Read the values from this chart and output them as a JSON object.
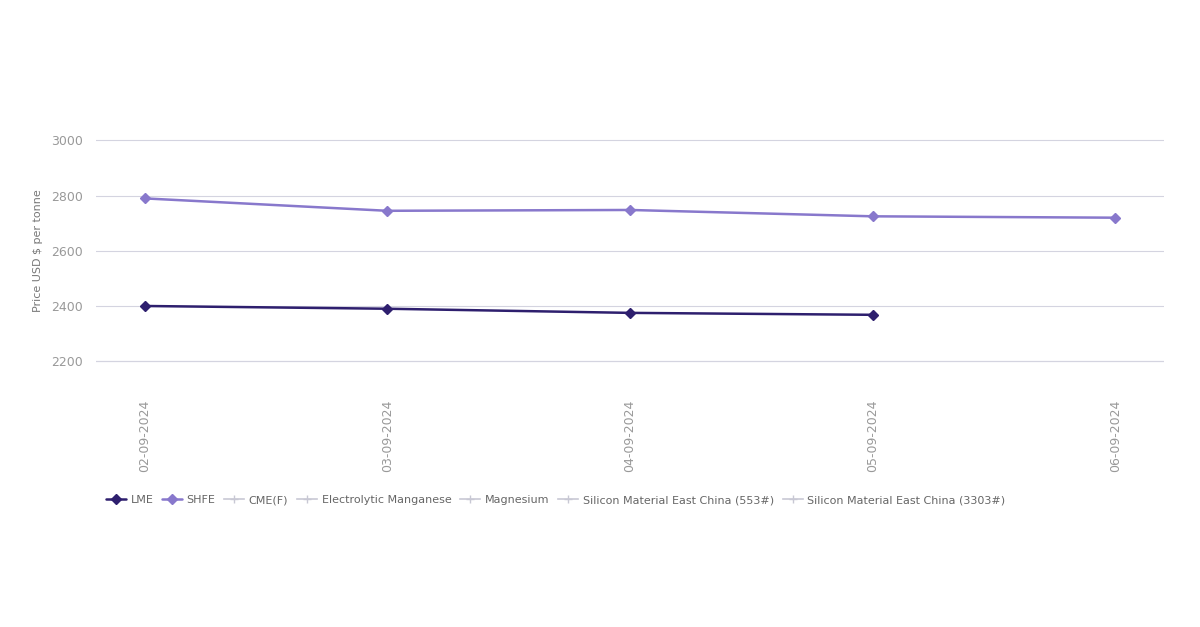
{
  "dates": [
    "02-09-2024",
    "03-09-2024",
    "04-09-2024",
    "05-09-2024",
    "06-09-2024"
  ],
  "lme": [
    2400,
    2390,
    2375,
    2368,
    null
  ],
  "shfe": [
    2790,
    2745,
    2748,
    2725,
    2720
  ],
  "lme_color": "#2e1f6e",
  "shfe_color": "#8878cc",
  "inactive_color": "#c8c8d4",
  "ylabel": "Price USD $ per tonne",
  "ylim": [
    2100,
    3100
  ],
  "yticks": [
    2200,
    2400,
    2600,
    2800,
    3000
  ],
  "background_color": "#ffffff",
  "grid_color": "#d4d4e0",
  "legend_items": [
    "LME",
    "SHFE",
    "CME(F)",
    "Electrolytic Manganese",
    "Magnesium",
    "Silicon Material East China (553#)",
    "Silicon Material East China (3303#)"
  ]
}
